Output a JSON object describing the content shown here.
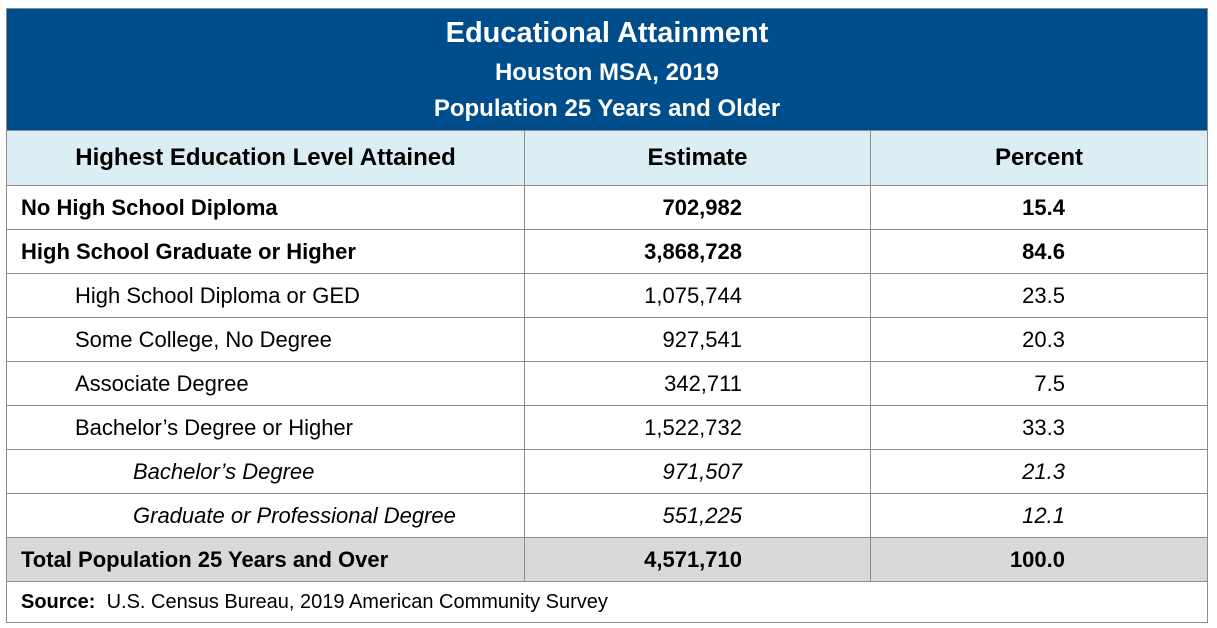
{
  "header": {
    "title": "Educational Attainment",
    "subtitle_lines": [
      "Houston MSA, 2019",
      "Population 25 Years and Older"
    ]
  },
  "table": {
    "columns": [
      "Highest Education Level Attained",
      "Estimate",
      "Percent"
    ],
    "rows": [
      [
        "No High School Diploma",
        "702,982",
        "15.4"
      ],
      [
        "High School Graduate or Higher",
        "3,868,728",
        "84.6"
      ],
      [
        "High School Diploma or GED",
        "1,075,744",
        "23.5"
      ],
      [
        "Some College, No Degree",
        "927,541",
        "20.3"
      ],
      [
        "Associate Degree",
        "342,711",
        "7.5"
      ],
      [
        "Bachelor’s Degree or Higher",
        "1,522,732",
        "33.3"
      ],
      [
        "Bachelor’s Degree",
        "971,507",
        "21.3"
      ],
      [
        "Graduate or Professional Degree",
        "551,225",
        "12.1"
      ],
      [
        "Total Population 25 Years and Over",
        "4,571,710",
        "100.0"
      ]
    ]
  },
  "source": {
    "label": "Source:",
    "text": "U.S. Census Bureau, 2019 American Community Survey"
  }
}
